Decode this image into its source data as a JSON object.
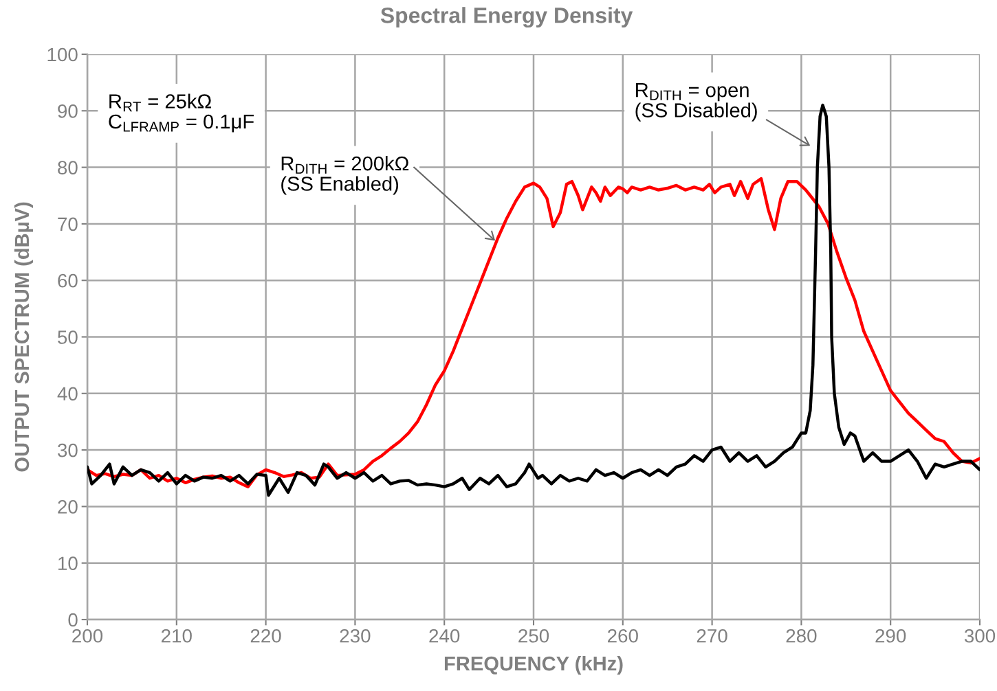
{
  "chart_data": {
    "type": "line",
    "title": "Spectral Energy Density",
    "xlabel": "FREQUENCY (kHz)",
    "ylabel": "OUTPUT SPECTRUM (dBµV)",
    "xlim": [
      200,
      300
    ],
    "xticks": [
      200,
      210,
      220,
      230,
      240,
      250,
      260,
      270,
      280,
      290,
      300
    ],
    "ylim": [
      0,
      100
    ],
    "yticks": [
      0,
      10,
      20,
      30,
      40,
      50,
      60,
      70,
      80,
      90,
      100
    ],
    "grid": true,
    "legend": false,
    "line_style": "solid",
    "marker": "none",
    "series": [
      {
        "color": "#ff0000",
        "x": [
          200,
          201,
          202,
          203,
          204,
          205,
          206,
          207,
          208,
          209,
          210,
          211,
          212,
          213,
          214,
          215,
          216,
          217,
          218,
          219,
          220,
          221,
          222,
          223,
          224,
          225,
          226,
          227,
          228,
          229,
          230,
          231,
          232,
          233,
          234,
          235,
          236,
          237,
          238,
          239,
          240,
          241,
          242,
          243,
          244,
          245,
          246,
          247,
          248,
          249,
          250,
          250.7,
          251.5,
          252.2,
          253,
          253.7,
          254.3,
          255,
          255.5,
          256,
          256.5,
          257,
          257.5,
          258,
          258.6,
          259.5,
          260,
          260.5,
          261,
          262,
          263,
          264,
          265,
          266,
          267,
          268,
          269,
          269.7,
          270.3,
          271,
          272,
          272.5,
          273.2,
          274,
          274.6,
          275.5,
          276.3,
          277,
          277.7,
          278.5,
          279.5,
          280.5,
          281,
          282,
          283,
          284,
          285,
          286,
          287,
          288,
          289,
          290,
          291,
          292,
          293,
          294,
          295,
          296,
          297,
          298,
          299,
          300
        ],
        "values": [
          26.5,
          25.5,
          25.8,
          25.3,
          25.7,
          25.5,
          26.5,
          25,
          25.5,
          24.5,
          25,
          24.2,
          24.8,
          25.2,
          25.4,
          25,
          25.2,
          24.2,
          23.5,
          25.6,
          26.5,
          26,
          25.3,
          25.6,
          26,
          25,
          25.2,
          27.5,
          25.5,
          25.6,
          25.7,
          26.5,
          28,
          29,
          30.3,
          31.5,
          33,
          35,
          38,
          41.5,
          44,
          47.5,
          51.5,
          55.5,
          59.5,
          63.5,
          67.5,
          71,
          74,
          76.5,
          77.2,
          76.5,
          74.5,
          69.5,
          72,
          77,
          77.5,
          75,
          72.5,
          74.5,
          76.5,
          75.5,
          74,
          76.5,
          75,
          76.5,
          76.2,
          75.5,
          76.5,
          76,
          76.5,
          76,
          76.3,
          76.8,
          76,
          76.5,
          76,
          77,
          75.5,
          76.5,
          77,
          75,
          77.5,
          74.5,
          77,
          78,
          72.5,
          69,
          74.5,
          77.5,
          77.5,
          76,
          75,
          73,
          70,
          65,
          60.5,
          56.5,
          51,
          47.5,
          44,
          40.5,
          38.5,
          36.5,
          35,
          33.5,
          32,
          31.5,
          29.5,
          28,
          27.7,
          28.5
        ]
      },
      {
        "color": "#000000",
        "x": [
          200,
          200.5,
          201.5,
          202.5,
          203,
          204,
          205,
          206,
          207,
          208,
          209,
          210,
          211,
          212,
          213,
          214,
          215,
          216,
          217,
          218,
          219,
          220,
          220.3,
          221.5,
          222.5,
          223.5,
          224.5,
          225.5,
          226.5,
          227,
          228,
          229,
          230,
          231,
          232,
          233,
          234,
          235,
          236,
          237,
          238,
          239,
          240,
          241,
          242,
          242.8,
          244,
          245,
          246,
          247,
          248,
          249,
          249.5,
          250.5,
          251,
          252,
          253,
          254,
          255,
          256,
          257,
          258,
          259,
          260,
          261,
          262,
          263,
          264,
          265,
          266,
          267,
          268,
          269,
          270,
          271,
          272,
          273,
          274,
          275,
          276,
          277,
          278,
          279,
          280,
          280.5,
          281,
          281.3,
          281.6,
          281.8,
          282.1,
          282.4,
          282.8,
          283.1,
          283.3,
          283.4,
          283.7,
          284.2,
          284.8,
          285.5,
          286,
          287,
          288,
          289,
          290,
          291,
          292,
          293,
          294,
          295,
          296,
          297,
          298,
          299,
          300
        ],
        "values": [
          27,
          24,
          25.5,
          27.5,
          24,
          27,
          25.5,
          26.5,
          26,
          24.5,
          26,
          24,
          25.5,
          24.5,
          25.2,
          25,
          25.5,
          24.5,
          25.5,
          24,
          25.7,
          25.5,
          22,
          25,
          22.5,
          26,
          25.5,
          23.8,
          27.5,
          27,
          25,
          26,
          25,
          26,
          24.5,
          25.5,
          24,
          24.5,
          24.6,
          23.8,
          24,
          23.8,
          23.5,
          24,
          25,
          23,
          25,
          24,
          25.5,
          23.5,
          24,
          26,
          27.5,
          25,
          25.5,
          24,
          25.5,
          24.5,
          25,
          24.5,
          26.5,
          25.5,
          26,
          25,
          26,
          26.5,
          25.5,
          26.5,
          25.5,
          27,
          27.5,
          29,
          28,
          30,
          30.5,
          28,
          29.5,
          28,
          29,
          27,
          28,
          29.5,
          30.5,
          33,
          33,
          37,
          45,
          65,
          80,
          89,
          91,
          89,
          80,
          65,
          50,
          40,
          34,
          31,
          33,
          32.5,
          28,
          29.5,
          28,
          28,
          29,
          30,
          28,
          25,
          27.5,
          27,
          27.5,
          28,
          28,
          26.5
        ]
      }
    ],
    "annotations": [
      "R$_{RT}$ = 25kΩ\nC$_{LFRAMP}$ = 0.1μF",
      {
        "text": "R$_{DITH}$ = 200kΩ\n(SS Enabled)",
        "x": 245.7,
        "y": 67
      },
      "R$_{DITH}$ = open\n(SS Disabled)"
    ]
  }
}
